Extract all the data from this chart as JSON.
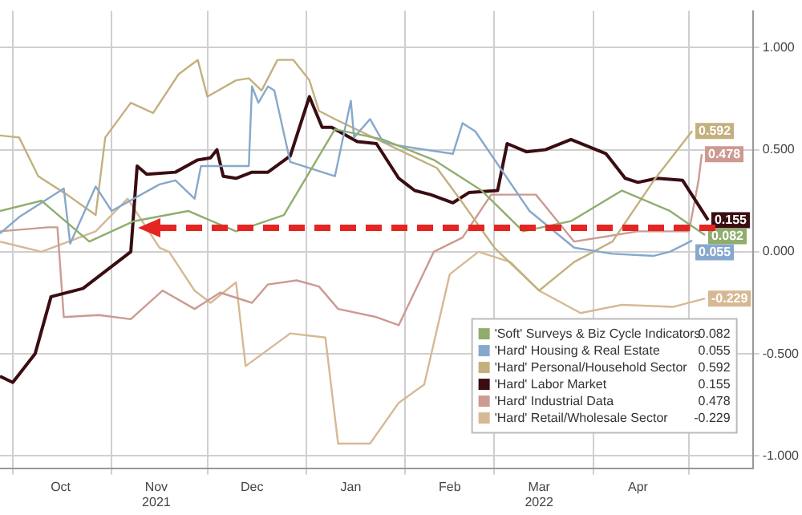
{
  "chart_data": {
    "type": "line",
    "xlim": [
      "2021-09-27",
      "2022-05-21"
    ],
    "xticks": [
      {
        "value": "2021-10-01",
        "label": null
      },
      {
        "value": "2021-10-16",
        "label": "Oct"
      },
      {
        "value": "2021-11-01",
        "label": null
      },
      {
        "value": "2021-11-15",
        "label": "Nov\n2021"
      },
      {
        "value": "2021-12-01",
        "label": null
      },
      {
        "value": "2021-12-15",
        "label": "Dec"
      },
      {
        "value": "2022-01-01",
        "label": null
      },
      {
        "value": "2022-01-15",
        "label": "Jan"
      },
      {
        "value": "2022-02-01",
        "label": null
      },
      {
        "value": "2022-02-15",
        "label": "Feb"
      },
      {
        "value": "2022-03-01",
        "label": null
      },
      {
        "value": "2022-03-15",
        "label": "Mar\n2022"
      },
      {
        "value": "2022-04-01",
        "label": null
      },
      {
        "value": "2022-04-15",
        "label": "Apr"
      },
      {
        "value": "2022-05-01",
        "label": null
      }
    ],
    "ylim": [
      -1.06,
      1.18
    ],
    "yticks": [
      {
        "value": -1,
        "label": "-1.000"
      },
      {
        "value": -0.5,
        "label": "-0.500"
      },
      {
        "value": 0,
        "label": "0.000"
      },
      {
        "value": 0.5,
        "label": "0.500"
      },
      {
        "value": 1,
        "label": "1.000"
      }
    ],
    "grid": true,
    "legend": "bottom right",
    "marker": "none",
    "line_style": "solid",
    "series": [
      {
        "name": "'Soft' Surveys & Biz Cycle Indicators",
        "color": "#8fae6e",
        "x": [
          "2021-09-27",
          "2021-10-10",
          "2021-10-25",
          "2021-11-08",
          "2021-11-25",
          "2021-12-10",
          "2021-12-25",
          "2022-01-10",
          "2022-01-25",
          "2022-02-10",
          "2022-02-25",
          "2022-03-10",
          "2022-03-25",
          "2022-04-10",
          "2022-04-25",
          "2022-05-06"
        ],
        "values": [
          0.2,
          0.25,
          0.05,
          0.15,
          0.2,
          0.1,
          0.18,
          0.6,
          0.55,
          0.45,
          0.3,
          0.1,
          0.15,
          0.3,
          0.2,
          0.082
        ],
        "value_labels": [
          null,
          null,
          null,
          null,
          null,
          null,
          null,
          null,
          null,
          null,
          null,
          null,
          null,
          null,
          null,
          "0.082"
        ]
      },
      {
        "name": "'Hard' Housing & Real Estate",
        "color": "#86a8cc",
        "x": [
          "2021-09-27",
          "2021-10-03",
          "2021-10-17",
          "2021-10-19",
          "2021-10-27",
          "2021-11-01",
          "2021-11-16",
          "2021-11-21",
          "2021-11-27",
          "2021-11-29",
          "2021-12-14",
          "2021-12-15",
          "2021-12-17",
          "2021-12-20",
          "2021-12-22",
          "2021-12-27",
          "2022-01-10",
          "2022-01-15",
          "2022-01-16",
          "2022-01-21",
          "2022-01-25",
          "2022-01-30",
          "2022-02-16",
          "2022-02-19",
          "2022-02-23",
          "2022-03-12",
          "2022-03-26",
          "2022-04-07",
          "2022-04-20",
          "2022-04-25",
          "2022-05-02"
        ],
        "values": [
          0.09,
          0.17,
          0.31,
          0.04,
          0.32,
          0.2,
          0.33,
          0.35,
          0.26,
          0.42,
          0.42,
          0.81,
          0.73,
          0.81,
          0.79,
          0.44,
          0.37,
          0.74,
          0.56,
          0.65,
          0.54,
          0.52,
          0.48,
          0.63,
          0.59,
          0.2,
          0.02,
          -0.01,
          -0.02,
          0,
          0.055
        ],
        "value_labels": [
          null,
          null,
          null,
          null,
          null,
          null,
          null,
          null,
          null,
          null,
          null,
          null,
          null,
          null,
          null,
          null,
          null,
          null,
          null,
          null,
          null,
          null,
          null,
          null,
          null,
          null,
          null,
          null,
          null,
          null,
          "0.055"
        ]
      },
      {
        "name": "'Hard' Personal/Household Sector",
        "color": "#c4b07e",
        "x": [
          "2021-09-27",
          "2021-10-03",
          "2021-10-09",
          "2021-10-18",
          "2021-10-27",
          "2021-10-30",
          "2021-11-07",
          "2021-11-14",
          "2021-11-22",
          "2021-11-28",
          "2021-12-01",
          "2021-12-10",
          "2021-12-14",
          "2021-12-18",
          "2021-12-23",
          "2021-12-28",
          "2022-01-02",
          "2022-01-05",
          "2022-01-10",
          "2022-01-30",
          "2022-02-11",
          "2022-02-19",
          "2022-03-01",
          "2022-03-15",
          "2022-03-26",
          "2022-04-07",
          "2022-04-20",
          "2022-05-02"
        ],
        "values": [
          0.57,
          0.56,
          0.37,
          0.28,
          0.18,
          0.56,
          0.73,
          0.68,
          0.87,
          0.94,
          0.76,
          0.84,
          0.85,
          0.79,
          0.94,
          0.94,
          0.84,
          0.69,
          0.65,
          0.5,
          0.41,
          0.24,
          0.02,
          -0.19,
          -0.05,
          0.05,
          0.35,
          0.592
        ],
        "value_labels": [
          null,
          null,
          null,
          null,
          null,
          null,
          null,
          null,
          null,
          null,
          null,
          null,
          null,
          null,
          null,
          null,
          null,
          null,
          null,
          null,
          null,
          null,
          null,
          null,
          null,
          null,
          null,
          "0.592"
        ]
      },
      {
        "name": "'Hard' Labor Market",
        "color": "#3a0d12",
        "x": [
          "2021-09-27",
          "2021-10-01",
          "2021-10-08",
          "2021-10-13",
          "2021-10-23",
          "2021-11-07",
          "2021-11-09",
          "2021-11-12",
          "2021-11-21",
          "2021-11-28",
          "2021-12-02",
          "2021-12-04",
          "2021-12-06",
          "2021-12-10",
          "2021-12-15",
          "2021-12-20",
          "2021-12-27",
          "2022-01-02",
          "2022-01-06",
          "2022-01-09",
          "2022-01-17",
          "2022-01-23",
          "2022-01-30",
          "2022-02-04",
          "2022-02-09",
          "2022-02-16",
          "2022-02-21",
          "2022-03-02",
          "2022-03-05",
          "2022-03-11",
          "2022-03-17",
          "2022-03-25",
          "2022-04-05",
          "2022-04-11",
          "2022-04-15",
          "2022-04-21",
          "2022-04-29",
          "2022-05-07"
        ],
        "values": [
          -0.61,
          -0.64,
          -0.5,
          -0.22,
          -0.18,
          0,
          0.42,
          0.38,
          0.39,
          0.45,
          0.46,
          0.5,
          0.37,
          0.36,
          0.39,
          0.39,
          0.47,
          0.76,
          0.61,
          0.61,
          0.54,
          0.53,
          0.36,
          0.3,
          0.28,
          0.24,
          0.29,
          0.3,
          0.53,
          0.49,
          0.5,
          0.55,
          0.48,
          0.36,
          0.34,
          0.36,
          0.35,
          0.155
        ],
        "value_labels": [
          null,
          null,
          null,
          null,
          null,
          null,
          null,
          null,
          null,
          null,
          null,
          null,
          null,
          null,
          null,
          null,
          null,
          null,
          null,
          null,
          null,
          null,
          null,
          null,
          null,
          null,
          null,
          null,
          null,
          null,
          null,
          null,
          null,
          null,
          null,
          null,
          null,
          "0.155"
        ]
      },
      {
        "name": "'Hard' Industrial Data",
        "color": "#cc9a92",
        "x": [
          "2021-09-27",
          "2021-10-12",
          "2021-10-15",
          "2021-10-17",
          "2021-10-28",
          "2021-11-07",
          "2021-11-17",
          "2021-11-27",
          "2021-12-05",
          "2021-12-15",
          "2021-12-20",
          "2021-12-29",
          "2022-01-05",
          "2022-01-11",
          "2022-01-23",
          "2022-01-30",
          "2022-02-10",
          "2022-02-19",
          "2022-02-28",
          "2022-03-14",
          "2022-03-26",
          "2022-04-15",
          "2022-05-01",
          "2022-05-04",
          "2022-05-05"
        ],
        "values": [
          0.1,
          0.12,
          0.12,
          -0.32,
          -0.31,
          -0.33,
          -0.19,
          -0.28,
          -0.2,
          -0.25,
          -0.16,
          -0.14,
          -0.17,
          -0.28,
          -0.32,
          -0.36,
          0,
          0.07,
          0.28,
          0.28,
          0.05,
          0.1,
          0.1,
          0.35,
          0.478
        ],
        "value_labels": [
          null,
          null,
          null,
          null,
          null,
          null,
          null,
          null,
          null,
          null,
          null,
          null,
          null,
          null,
          null,
          null,
          null,
          null,
          null,
          null,
          null,
          null,
          null,
          null,
          "0.478"
        ]
      },
      {
        "name": "'Hard' Retail/Wholesale Sector",
        "color": "#d6b994",
        "x": [
          "2021-09-27",
          "2021-10-10",
          "2021-10-27",
          "2021-11-06",
          "2021-11-16",
          "2021-11-19",
          "2021-11-27",
          "2021-12-02",
          "2021-12-10",
          "2021-12-13",
          "2021-12-27",
          "2022-01-07",
          "2022-01-11",
          "2022-01-21",
          "2022-01-30",
          "2022-02-07",
          "2022-02-15",
          "2022-02-24",
          "2022-03-06",
          "2022-03-15",
          "2022-03-28",
          "2022-04-10",
          "2022-04-26",
          "2022-05-06"
        ],
        "values": [
          0.05,
          0,
          0.1,
          0.26,
          0.02,
          0,
          -0.19,
          -0.25,
          -0.15,
          -0.56,
          -0.4,
          -0.42,
          -0.94,
          -0.94,
          -0.74,
          -0.65,
          -0.11,
          0,
          -0.05,
          -0.19,
          -0.3,
          -0.26,
          -0.27,
          -0.229
        ],
        "value_labels": [
          null,
          null,
          null,
          null,
          null,
          null,
          null,
          null,
          null,
          null,
          null,
          null,
          null,
          null,
          null,
          null,
          null,
          null,
          null,
          null,
          null,
          null,
          null,
          "-0.229"
        ]
      }
    ]
  }
}
